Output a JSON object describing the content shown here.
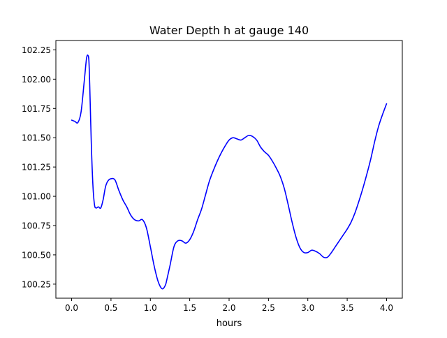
{
  "chart_data": {
    "type": "line",
    "title": "Water Depth h at gauge 140",
    "xlabel": "hours",
    "ylabel": "",
    "xlim": [
      -0.2,
      4.2
    ],
    "ylim": [
      100.13,
      102.33
    ],
    "xticks": [
      0.0,
      0.5,
      1.0,
      1.5,
      2.0,
      2.5,
      3.0,
      3.5,
      4.0
    ],
    "xtick_labels": [
      "0.0",
      "0.5",
      "1.0",
      "1.5",
      "2.0",
      "2.5",
      "3.0",
      "3.5",
      "4.0"
    ],
    "yticks": [
      100.25,
      100.5,
      100.75,
      101.0,
      101.25,
      101.5,
      101.75,
      102.0,
      102.25
    ],
    "ytick_labels": [
      "100.25",
      "100.50",
      "100.75",
      "101.00",
      "101.25",
      "101.50",
      "101.75",
      "102.00",
      "102.25"
    ],
    "grid": false,
    "series": [
      {
        "color": "#0000ff",
        "x": [
          0.0,
          0.04,
          0.08,
          0.12,
          0.16,
          0.19,
          0.21,
          0.22,
          0.23,
          0.25,
          0.27,
          0.29,
          0.31,
          0.34,
          0.37,
          0.4,
          0.43,
          0.46,
          0.5,
          0.55,
          0.6,
          0.65,
          0.7,
          0.75,
          0.8,
          0.85,
          0.9,
          0.95,
          1.0,
          1.05,
          1.1,
          1.15,
          1.19,
          1.21,
          1.25,
          1.3,
          1.35,
          1.4,
          1.45,
          1.5,
          1.55,
          1.6,
          1.65,
          1.7,
          1.75,
          1.8,
          1.85,
          1.9,
          1.95,
          2.0,
          2.05,
          2.1,
          2.15,
          2.2,
          2.25,
          2.3,
          2.35,
          2.4,
          2.45,
          2.5,
          2.55,
          2.6,
          2.65,
          2.7,
          2.75,
          2.8,
          2.85,
          2.9,
          2.95,
          3.0,
          3.05,
          3.1,
          3.15,
          3.2,
          3.25,
          3.3,
          3.35,
          3.4,
          3.45,
          3.5,
          3.55,
          3.6,
          3.65,
          3.7,
          3.75,
          3.8,
          3.85,
          3.9,
          3.95,
          4.0
        ],
        "y": [
          101.65,
          101.64,
          101.63,
          101.72,
          101.98,
          102.18,
          102.2,
          102.15,
          101.95,
          101.45,
          101.1,
          100.93,
          100.9,
          100.91,
          100.9,
          100.97,
          101.08,
          101.13,
          101.15,
          101.14,
          101.05,
          100.97,
          100.91,
          100.84,
          100.8,
          100.79,
          100.8,
          100.73,
          100.57,
          100.4,
          100.27,
          100.21,
          100.24,
          100.29,
          100.41,
          100.57,
          100.62,
          100.62,
          100.6,
          100.63,
          100.7,
          100.8,
          100.89,
          101.01,
          101.13,
          101.22,
          101.3,
          101.37,
          101.43,
          101.48,
          101.5,
          101.49,
          101.48,
          101.5,
          101.52,
          101.51,
          101.48,
          101.42,
          101.38,
          101.35,
          101.3,
          101.24,
          101.17,
          101.07,
          100.93,
          100.78,
          100.65,
          100.56,
          100.52,
          100.52,
          100.54,
          100.53,
          100.51,
          100.48,
          100.48,
          100.52,
          100.57,
          100.62,
          100.67,
          100.72,
          100.78,
          100.86,
          100.96,
          101.07,
          101.19,
          101.32,
          101.47,
          101.6,
          101.7,
          101.79
        ]
      }
    ]
  }
}
